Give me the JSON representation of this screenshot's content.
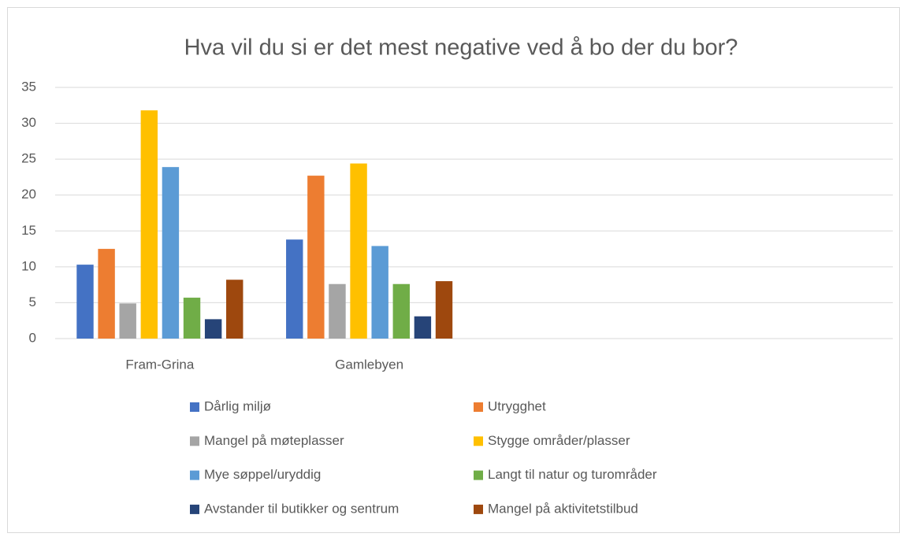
{
  "chart_data": {
    "type": "bar",
    "title": "Hva vil du si er det mest negative ved å bo der du bor?",
    "categories": [
      "Fram-Grina",
      "Gamlebyen",
      null,
      null
    ],
    "series": [
      {
        "name": "Dårlig miljø",
        "color": "#4472c4",
        "values": [
          10.3,
          13.8,
          null,
          null
        ]
      },
      {
        "name": "Utrygghet",
        "color": "#ed7d31",
        "values": [
          12.5,
          22.7,
          null,
          null
        ]
      },
      {
        "name": "Mangel på møteplasser",
        "color": "#a5a5a5",
        "values": [
          4.9,
          7.6,
          null,
          null
        ]
      },
      {
        "name": "Stygge områder/plasser",
        "color": "#ffc000",
        "values": [
          31.8,
          24.4,
          null,
          null
        ]
      },
      {
        "name": "Mye søppel/uryddig",
        "color": "#5b9bd5",
        "values": [
          23.9,
          12.9,
          null,
          null
        ]
      },
      {
        "name": "Langt til natur og turområder",
        "color": "#70ad47",
        "values": [
          5.7,
          7.6,
          null,
          null
        ]
      },
      {
        "name": "Avstander til butikker og sentrum",
        "color": "#264478",
        "values": [
          2.7,
          3.1,
          null,
          null
        ]
      },
      {
        "name": "Mangel på aktivitetstilbud",
        "color": "#9e480e",
        "values": [
          8.2,
          8.0,
          null,
          null
        ]
      }
    ],
    "ylim": [
      0,
      35
    ],
    "yticks": [
      0,
      5,
      10,
      15,
      20,
      25,
      30,
      35
    ],
    "grid": true,
    "legend": "bottom"
  }
}
